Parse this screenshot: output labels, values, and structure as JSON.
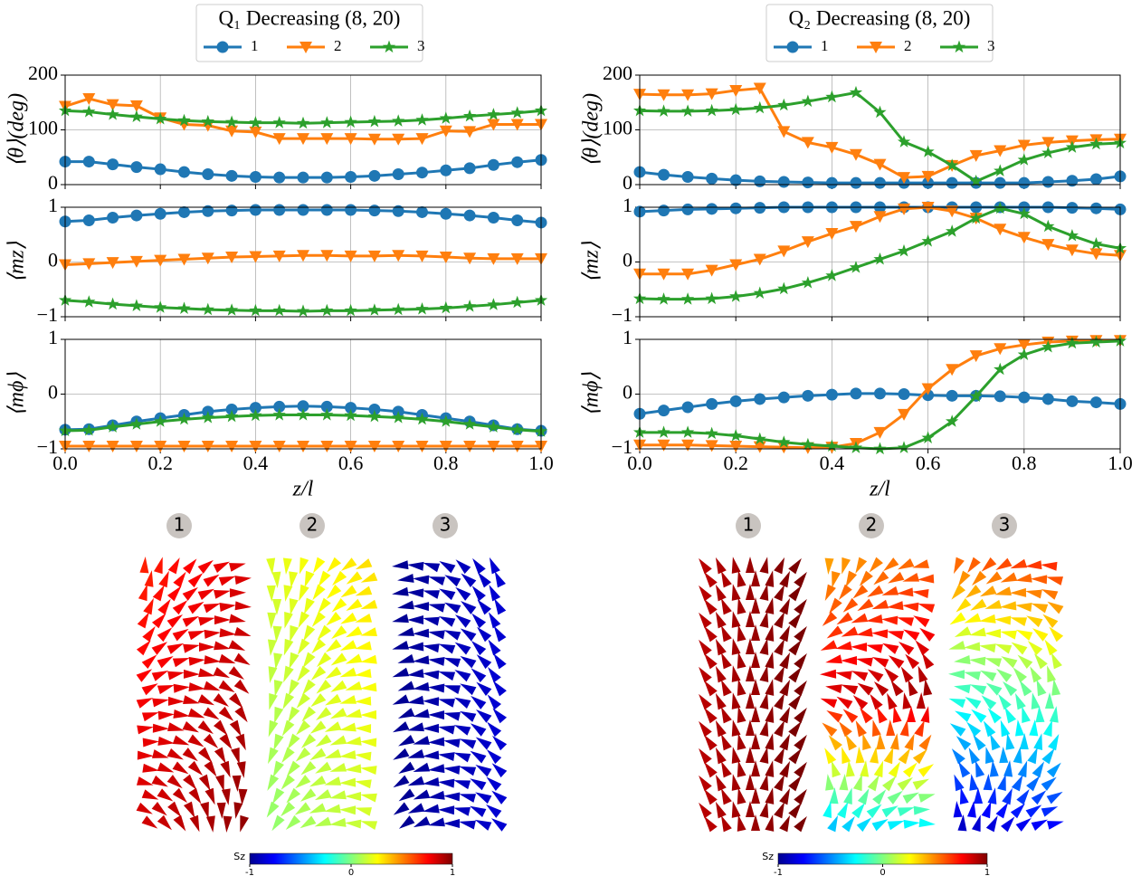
{
  "chart_data": [
    {
      "type": "line",
      "legend": {
        "title": "Q₁ Decreasing (8, 20)"
      },
      "ylabel": "⟨θ⟩(deg)",
      "x": [
        0,
        0.05,
        0.1,
        0.15,
        0.2,
        0.25,
        0.3,
        0.35,
        0.4,
        0.45,
        0.5,
        0.55,
        0.6,
        0.65,
        0.7,
        0.75,
        0.8,
        0.85,
        0.9,
        0.95,
        1
      ],
      "xlim": [
        0,
        1
      ],
      "xticks": [
        {
          "value": 0,
          "label": "0.0"
        },
        0.2,
        0.4,
        0.6,
        0.8,
        {
          "value": 1,
          "label": "1.0"
        }
      ],
      "show_xticklabels": false,
      "ylim": [
        0,
        200
      ],
      "yticks": [
        0,
        100,
        200
      ],
      "grid": true,
      "series": [
        {
          "name": "1",
          "color": "#1f77b4",
          "marker": "circle",
          "values": [
            42,
            42,
            37,
            32,
            28,
            23,
            19,
            16,
            14,
            13,
            13,
            13,
            14,
            16,
            19,
            22,
            26,
            30,
            36,
            41,
            45
          ]
        },
        {
          "name": "2",
          "color": "#ff7f0e",
          "marker": "triangle-down",
          "values": [
            143,
            157,
            146,
            144,
            122,
            110,
            108,
            98,
            96,
            84,
            84,
            84,
            84,
            83,
            83,
            84,
            98,
            97,
            110,
            110,
            110
          ]
        },
        {
          "name": "3",
          "color": "#2ca02c",
          "marker": "star",
          "values": [
            135,
            133,
            128,
            124,
            120,
            117,
            115,
            114,
            113,
            113,
            112,
            113,
            114,
            115,
            116,
            118,
            121,
            125,
            128,
            131,
            135
          ]
        }
      ]
    },
    {
      "type": "line",
      "legend": {
        "title": "Q₂ Decreasing (8, 20)"
      },
      "ylabel": "⟨θ⟩(deg)",
      "x": [
        0,
        0.05,
        0.1,
        0.15,
        0.2,
        0.25,
        0.3,
        0.35,
        0.4,
        0.45,
        0.5,
        0.55,
        0.6,
        0.65,
        0.7,
        0.75,
        0.8,
        0.85,
        0.9,
        0.95,
        1
      ],
      "xlim": [
        0,
        1
      ],
      "xticks": [
        {
          "value": 0,
          "label": "0.0"
        },
        0.2,
        0.4,
        0.6,
        0.8,
        {
          "value": 1,
          "label": "1.0"
        }
      ],
      "show_xticklabels": false,
      "ylim": [
        0,
        200
      ],
      "yticks": [
        0,
        100,
        200
      ],
      "grid": true,
      "series": [
        {
          "name": "1",
          "color": "#1f77b4",
          "marker": "circle",
          "values": [
            23,
            18,
            14,
            11,
            8,
            6,
            5,
            4,
            3,
            3,
            3,
            3,
            3,
            3,
            3,
            3,
            3,
            5,
            7,
            10,
            15
          ]
        },
        {
          "name": "2",
          "color": "#ff7f0e",
          "marker": "triangle-down",
          "values": [
            165,
            164,
            164,
            166,
            172,
            176,
            97,
            77,
            68,
            55,
            37,
            13,
            15,
            35,
            53,
            62,
            72,
            77,
            80,
            82,
            83
          ]
        },
        {
          "name": "3",
          "color": "#2ca02c",
          "marker": "star",
          "values": [
            135,
            134,
            134,
            135,
            137,
            140,
            145,
            152,
            160,
            168,
            132,
            78,
            60,
            35,
            6,
            25,
            45,
            58,
            68,
            74,
            76
          ]
        }
      ]
    },
    {
      "type": "line",
      "ylabel": "⟨mz⟩",
      "x": [
        0,
        0.05,
        0.1,
        0.15,
        0.2,
        0.25,
        0.3,
        0.35,
        0.4,
        0.45,
        0.5,
        0.55,
        0.6,
        0.65,
        0.7,
        0.75,
        0.8,
        0.85,
        0.9,
        0.95,
        1
      ],
      "xlim": [
        0,
        1
      ],
      "xticks": [
        {
          "value": 0,
          "label": "0.0"
        },
        0.2,
        0.4,
        0.6,
        0.8,
        {
          "value": 1,
          "label": "1.0"
        }
      ],
      "show_xticklabels": false,
      "ylim": [
        -1,
        1
      ],
      "yticks": [
        {
          "value": -1,
          "label": "−1"
        },
        0,
        1
      ],
      "grid": true,
      "series": [
        {
          "color": "#1f77b4",
          "marker": "circle",
          "values": [
            0.74,
            0.76,
            0.81,
            0.85,
            0.88,
            0.91,
            0.93,
            0.94,
            0.95,
            0.95,
            0.95,
            0.95,
            0.95,
            0.94,
            0.93,
            0.91,
            0.88,
            0.85,
            0.81,
            0.76,
            0.72
          ]
        },
        {
          "color": "#ff7f0e",
          "marker": "triangle-down",
          "values": [
            -0.05,
            -0.03,
            -0.01,
            0.01,
            0.03,
            0.05,
            0.07,
            0.09,
            0.1,
            0.11,
            0.12,
            0.12,
            0.11,
            0.11,
            0.12,
            0.11,
            0.09,
            0.07,
            0.06,
            0.06,
            0.06
          ]
        },
        {
          "color": "#2ca02c",
          "marker": "star",
          "values": [
            -0.7,
            -0.73,
            -0.77,
            -0.8,
            -0.83,
            -0.85,
            -0.87,
            -0.88,
            -0.89,
            -0.89,
            -0.9,
            -0.89,
            -0.89,
            -0.88,
            -0.87,
            -0.86,
            -0.84,
            -0.81,
            -0.78,
            -0.74,
            -0.7
          ]
        }
      ]
    },
    {
      "type": "line",
      "ylabel": "⟨mz⟩",
      "x": [
        0,
        0.05,
        0.1,
        0.15,
        0.2,
        0.25,
        0.3,
        0.35,
        0.4,
        0.45,
        0.5,
        0.55,
        0.6,
        0.65,
        0.7,
        0.75,
        0.8,
        0.85,
        0.9,
        0.95,
        1
      ],
      "xlim": [
        0,
        1
      ],
      "xticks": [
        {
          "value": 0,
          "label": "0.0"
        },
        0.2,
        0.4,
        0.6,
        0.8,
        {
          "value": 1,
          "label": "1.0"
        }
      ],
      "show_xticklabels": false,
      "ylim": [
        -1,
        1
      ],
      "yticks": [
        {
          "value": -1,
          "label": "−1"
        },
        0,
        1
      ],
      "grid": true,
      "series": [
        {
          "color": "#1f77b4",
          "marker": "circle",
          "values": [
            0.92,
            0.94,
            0.96,
            0.97,
            0.98,
            0.99,
            1,
            1,
            1,
            1,
            1,
            1,
            1,
            1,
            1,
            1,
            1,
            1,
            0.99,
            0.98,
            0.96
          ]
        },
        {
          "color": "#ff7f0e",
          "marker": "triangle-down",
          "values": [
            -0.22,
            -0.22,
            -0.22,
            -0.15,
            -0.05,
            0.05,
            0.2,
            0.37,
            0.52,
            0.65,
            0.83,
            0.97,
            1,
            0.93,
            0.8,
            0.6,
            0.45,
            0.32,
            0.22,
            0.15,
            0.12
          ]
        },
        {
          "color": "#2ca02c",
          "marker": "star",
          "values": [
            -0.67,
            -0.68,
            -0.68,
            -0.67,
            -0.63,
            -0.57,
            -0.49,
            -0.38,
            -0.25,
            -0.1,
            0.05,
            0.2,
            0.38,
            0.56,
            0.8,
            0.98,
            0.88,
            0.65,
            0.48,
            0.33,
            0.25
          ]
        }
      ]
    },
    {
      "type": "line",
      "ylabel": "⟨mϕ⟩",
      "xlabel": "z/l",
      "x": [
        0,
        0.05,
        0.1,
        0.15,
        0.2,
        0.25,
        0.3,
        0.35,
        0.4,
        0.45,
        0.5,
        0.55,
        0.6,
        0.65,
        0.7,
        0.75,
        0.8,
        0.85,
        0.9,
        0.95,
        1
      ],
      "xlim": [
        0,
        1
      ],
      "xticks": [
        {
          "value": 0,
          "label": "0.0"
        },
        0.2,
        0.4,
        0.6,
        0.8,
        {
          "value": 1,
          "label": "1.0"
        }
      ],
      "show_xticklabels": true,
      "ylim": [
        -1,
        1
      ],
      "yticks": [
        {
          "value": -1,
          "label": "−1"
        },
        0,
        1
      ],
      "grid": true,
      "series": [
        {
          "color": "#1f77b4",
          "marker": "circle",
          "values": [
            -0.65,
            -0.64,
            -0.57,
            -0.5,
            -0.44,
            -0.38,
            -0.32,
            -0.28,
            -0.25,
            -0.23,
            -0.22,
            -0.23,
            -0.25,
            -0.28,
            -0.32,
            -0.38,
            -0.44,
            -0.5,
            -0.57,
            -0.64,
            -0.67
          ]
        },
        {
          "color": "#ff7f0e",
          "marker": "triangle-down",
          "values": [
            -0.95,
            -0.95,
            -0.95,
            -0.95,
            -0.95,
            -0.95,
            -0.95,
            -0.95,
            -0.95,
            -0.95,
            -0.95,
            -0.95,
            -0.95,
            -0.95,
            -0.95,
            -0.95,
            -0.95,
            -0.95,
            -0.95,
            -0.95,
            -0.95
          ]
        },
        {
          "color": "#2ca02c",
          "marker": "star",
          "values": [
            -0.67,
            -0.66,
            -0.6,
            -0.55,
            -0.5,
            -0.46,
            -0.43,
            -0.41,
            -0.39,
            -0.38,
            -0.38,
            -0.38,
            -0.39,
            -0.41,
            -0.43,
            -0.46,
            -0.5,
            -0.55,
            -0.6,
            -0.65,
            -0.68
          ]
        }
      ]
    },
    {
      "type": "line",
      "ylabel": "⟨mϕ⟩",
      "xlabel": "z/l",
      "x": [
        0,
        0.05,
        0.1,
        0.15,
        0.2,
        0.25,
        0.3,
        0.35,
        0.4,
        0.45,
        0.5,
        0.55,
        0.6,
        0.65,
        0.7,
        0.75,
        0.8,
        0.85,
        0.9,
        0.95,
        1
      ],
      "xlim": [
        0,
        1
      ],
      "xticks": [
        {
          "value": 0,
          "label": "0.0"
        },
        0.2,
        0.4,
        0.6,
        0.8,
        {
          "value": 1,
          "label": "1.0"
        }
      ],
      "show_xticklabels": true,
      "ylim": [
        -1,
        1
      ],
      "yticks": [
        {
          "value": -1,
          "label": "−1"
        },
        0,
        1
      ],
      "grid": true,
      "series": [
        {
          "color": "#1f77b4",
          "marker": "circle",
          "values": [
            -0.36,
            -0.3,
            -0.24,
            -0.18,
            -0.13,
            -0.09,
            -0.06,
            -0.03,
            -0.01,
            0.01,
            0.01,
            0,
            -0.02,
            -0.03,
            -0.03,
            -0.04,
            -0.06,
            -0.09,
            -0.13,
            -0.15,
            -0.18
          ]
        },
        {
          "color": "#ff7f0e",
          "marker": "triangle-down",
          "values": [
            -0.93,
            -0.93,
            -0.93,
            -0.94,
            -0.95,
            -0.96,
            -0.97,
            -0.98,
            -0.97,
            -0.9,
            -0.7,
            -0.37,
            0.1,
            0.45,
            0.7,
            0.83,
            0.9,
            0.95,
            0.97,
            0.98,
            0.98
          ]
        },
        {
          "color": "#2ca02c",
          "marker": "star",
          "values": [
            -0.7,
            -0.7,
            -0.7,
            -0.72,
            -0.76,
            -0.82,
            -0.88,
            -0.92,
            -0.95,
            -0.98,
            -1,
            -0.98,
            -0.8,
            -0.5,
            -0.04,
            0.45,
            0.72,
            0.86,
            0.93,
            0.95,
            0.97
          ]
        }
      ]
    }
  ],
  "renderings": [
    {
      "labels": [
        "1",
        "2",
        "3"
      ]
    },
    {
      "labels": [
        "1",
        "2",
        "3"
      ]
    }
  ],
  "colorbars": [
    {
      "label": "Sz",
      "lim": [
        -1,
        1
      ],
      "ticks": [
        -1,
        0,
        1
      ]
    },
    {
      "label": "Sz",
      "lim": [
        -1,
        1
      ],
      "ticks": [
        -1,
        0,
        1
      ]
    }
  ]
}
